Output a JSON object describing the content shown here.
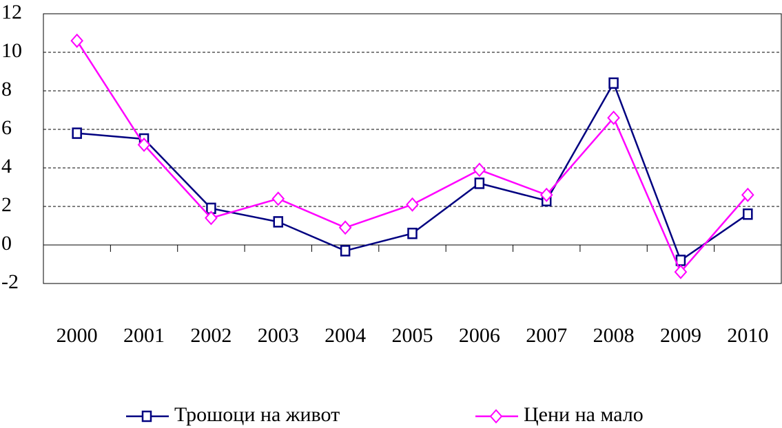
{
  "chart_data": {
    "type": "line",
    "categories": [
      "2000",
      "2001",
      "2002",
      "2003",
      "2004",
      "2005",
      "2006",
      "2007",
      "2008",
      "2009",
      "2010"
    ],
    "series": [
      {
        "name": "Трошоци на живот",
        "color": "#000080",
        "marker": "square",
        "values": [
          5.8,
          5.5,
          1.9,
          1.2,
          -0.3,
          0.6,
          3.2,
          2.3,
          8.4,
          -0.8,
          1.6
        ]
      },
      {
        "name": "Цени на мало",
        "color": "#ff00ff",
        "marker": "diamond",
        "values": [
          10.6,
          5.2,
          1.4,
          2.4,
          0.9,
          2.1,
          3.9,
          2.6,
          6.6,
          -1.4,
          2.6
        ]
      }
    ],
    "ylim": [
      -2,
      12
    ],
    "yticks": [
      -2,
      0,
      2,
      4,
      6,
      8,
      10,
      12
    ],
    "grid": true,
    "legend": "bottom"
  }
}
